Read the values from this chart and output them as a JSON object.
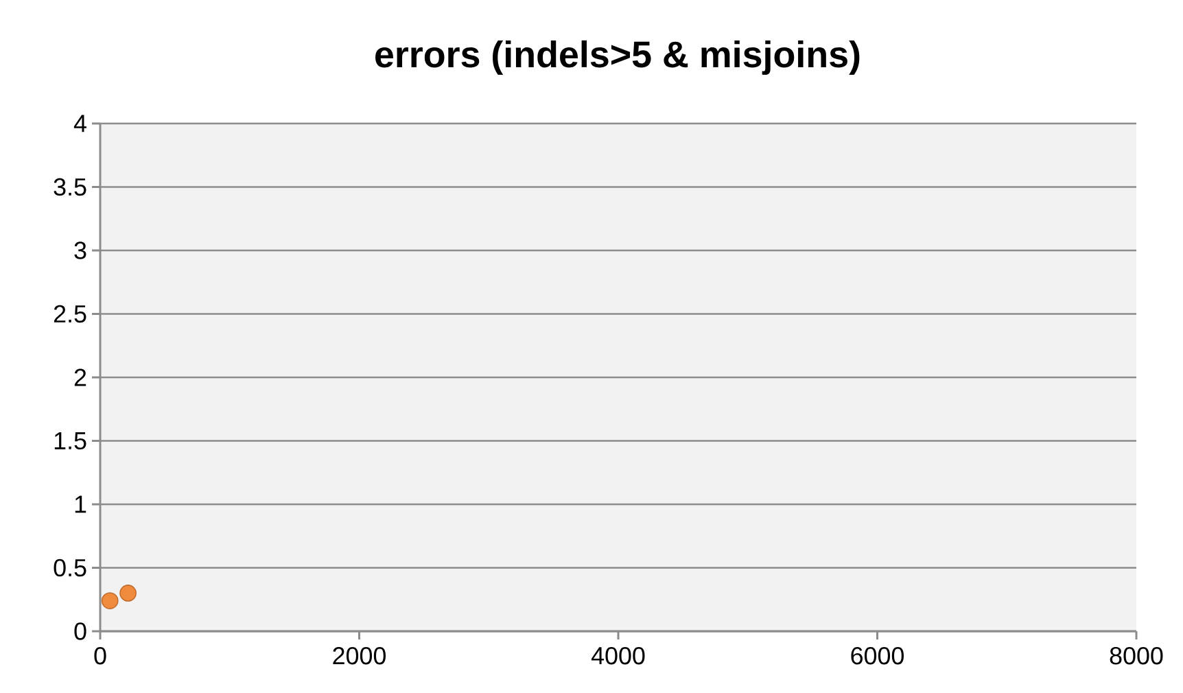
{
  "chart_data": {
    "type": "scatter",
    "title": "errors (indels>5 & misjoins)",
    "x": [
      75,
      215
    ],
    "values": [
      0.24,
      0.3
    ],
    "color": "#f08a3c",
    "marker": "circle",
    "xlim": [
      0,
      8000
    ],
    "xticks": [
      0,
      2000,
      4000,
      6000,
      8000
    ],
    "ylim": [
      0,
      4
    ],
    "yticks": [
      0,
      0.5,
      1,
      1.5,
      2,
      2.5,
      3,
      3.5,
      4
    ],
    "grid": "y"
  }
}
